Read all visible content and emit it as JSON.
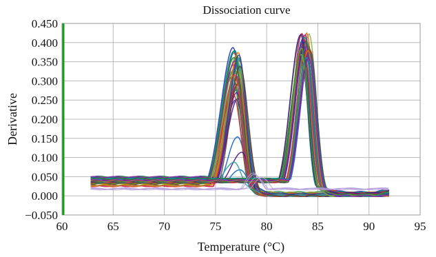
{
  "chart_data": {
    "type": "line",
    "title": "Dissociation curve",
    "xlabel": "Temperature (°C)",
    "ylabel": "Derivative",
    "xlim": [
      60,
      95
    ],
    "ylim": [
      -0.05,
      0.45
    ],
    "x_ticks": [
      "60",
      "65",
      "70",
      "75",
      "80",
      "85",
      "90",
      "95"
    ],
    "y_ticks": [
      "−0.050",
      "0.000",
      "0.050",
      "0.100",
      "0.150",
      "0.200",
      "0.250",
      "0.300",
      "0.350",
      "0.400",
      "0.450"
    ],
    "grid": true,
    "x_range_plotted": [
      62.8,
      92.0
    ],
    "peak_groups": [
      {
        "peak_temperature_range": [
          76.6,
          77.6
        ],
        "peak_height_range": [
          0.06,
          0.39
        ],
        "baseline_before_peak": [
          0.025,
          0.05
        ],
        "baseline_after_peak": [
          -0.01,
          0.01
        ]
      },
      {
        "peak_temperature_range": [
          83.3,
          84.3
        ],
        "peak_height_range": [
          0.36,
          0.425
        ],
        "baseline_before_peak": [
          0.035,
          0.045
        ],
        "baseline_after_peak": [
          -0.005,
          0.01
        ]
      }
    ],
    "series_colors": [
      "#1f2fbf",
      "#6a1b9a",
      "#d32f2f",
      "#00897b",
      "#388e3c",
      "#7cb342",
      "#1565c0",
      "#c2185b",
      "#ef6c00",
      "#4a148c",
      "#0097a7",
      "#9e9d24",
      "#8e24aa",
      "#2e7d32",
      "#303f9f",
      "#e53935",
      "#26a69a",
      "#5d4037"
    ],
    "y_axis_color": "#1a9a1a"
  }
}
